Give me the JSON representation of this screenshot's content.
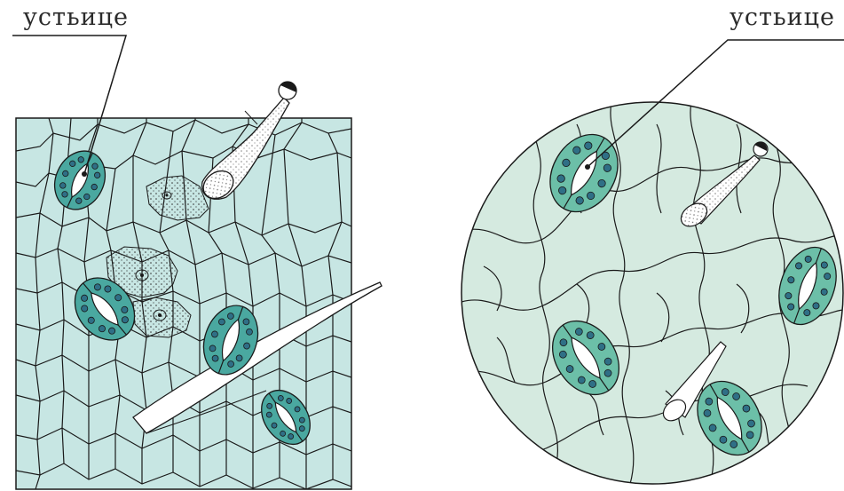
{
  "labels": {
    "left": "устьице",
    "right": "устьице"
  },
  "colors": {
    "left_tissue": "#c7e6e3",
    "right_tissue": "#d5eae0",
    "guard_cell": "#4aa8a0",
    "guard_cell_right": "#6cbfa8",
    "chloroplast": "#2f6f86",
    "outline": "#1a1a1a"
  },
  "icons": {
    "stoma": "stoma-icon",
    "hair": "trichome-icon",
    "gland": "glandular-hair-icon"
  }
}
